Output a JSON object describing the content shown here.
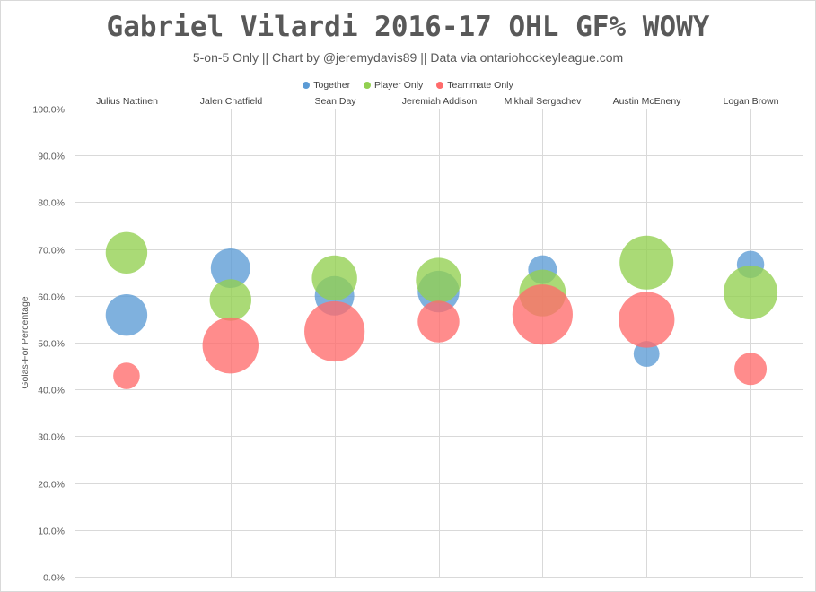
{
  "chart_data": {
    "type": "scatter",
    "title": "Gabriel Vilardi 2016-17 OHL GF% WOWY",
    "subtitle": "5-on-5 Only || Chart by @jeremydavis89 || Data via ontariohockeyleague.com",
    "ylabel": "Golas-For Percentage",
    "xlabel": "",
    "ylim": [
      0,
      100
    ],
    "yticks": [
      "0.0%",
      "10.0%",
      "20.0%",
      "30.0%",
      "40.0%",
      "50.0%",
      "60.0%",
      "70.0%",
      "80.0%",
      "90.0%",
      "100.0%"
    ],
    "categories": [
      "Julius Nattinen",
      "Jalen Chatfield",
      "Sean Day",
      "Jeremiah Addison",
      "Mikhail Sergachev",
      "Austin McEneny",
      "Logan Brown"
    ],
    "grid": true,
    "legend_position": "top",
    "series": [
      {
        "name": "Together",
        "color": "#5b9bd5",
        "values": [
          55.9,
          65.9,
          60.0,
          60.9,
          65.6,
          47.6,
          66.7
        ],
        "bubble_size": [
          0.58,
          0.55,
          0.55,
          0.58,
          0.4,
          0.36,
          0.38
        ]
      },
      {
        "name": "Player Only",
        "color": "#92d050",
        "values": [
          69.2,
          59.1,
          63.8,
          63.3,
          60.6,
          67.1,
          60.7
        ],
        "bubble_size": [
          0.58,
          0.58,
          0.63,
          0.63,
          0.65,
          0.75,
          0.75
        ]
      },
      {
        "name": "Teammate Only",
        "color": "#ff6b6b",
        "values": [
          42.9,
          49.4,
          52.4,
          54.5,
          56.0,
          54.9,
          44.4
        ],
        "bubble_size": [
          0.37,
          0.78,
          0.84,
          0.58,
          0.84,
          0.78,
          0.45
        ]
      }
    ]
  }
}
